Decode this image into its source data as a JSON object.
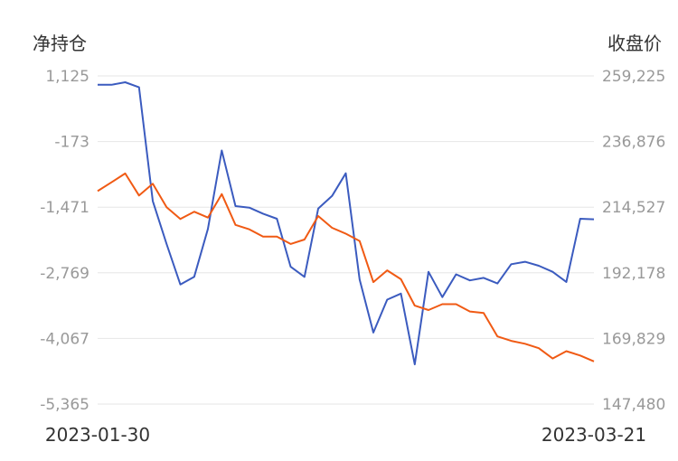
{
  "chart_data": {
    "type": "line",
    "left_axis_title": "净持仓",
    "right_axis_title": "收盘价",
    "left_ticks": [
      "1,125",
      "-173",
      "-1,471",
      "-2,769",
      "-4,067",
      "-5,365"
    ],
    "right_ticks": [
      "259,225",
      "236,876",
      "214,527",
      "192,178",
      "169,829",
      "147,480"
    ],
    "left_ylim": [
      -5365,
      1125
    ],
    "right_ylim": [
      147480,
      259225
    ],
    "x_start_label": "2023-01-30",
    "x_end_label": "2023-03-21",
    "grid": true,
    "series": [
      {
        "axis": "left",
        "color": "#3b5bbf",
        "values": [
          950,
          950,
          1000,
          900,
          -1350,
          -2200,
          -3000,
          -2850,
          -1900,
          -350,
          -1450,
          -1480,
          -1600,
          -1700,
          -2650,
          -2850,
          -1500,
          -1250,
          -800,
          -2900,
          -3950,
          -3300,
          -3180,
          -4580,
          -2750,
          -3250,
          -2800,
          -2920,
          -2870,
          -2980,
          -2600,
          -2550,
          -2630,
          -2750,
          -2950,
          -1700,
          -1710
        ]
      },
      {
        "axis": "right",
        "color": "#f05a14",
        "values": [
          220000,
          223000,
          226000,
          218500,
          222500,
          214500,
          210500,
          213000,
          211000,
          219000,
          208500,
          207000,
          204500,
          204500,
          202000,
          203500,
          211500,
          207500,
          205500,
          203000,
          189000,
          193000,
          190000,
          181000,
          179500,
          181500,
          181500,
          179000,
          178500,
          170500,
          169000,
          168000,
          166500,
          163000,
          165500,
          164000,
          162000
        ]
      }
    ]
  }
}
